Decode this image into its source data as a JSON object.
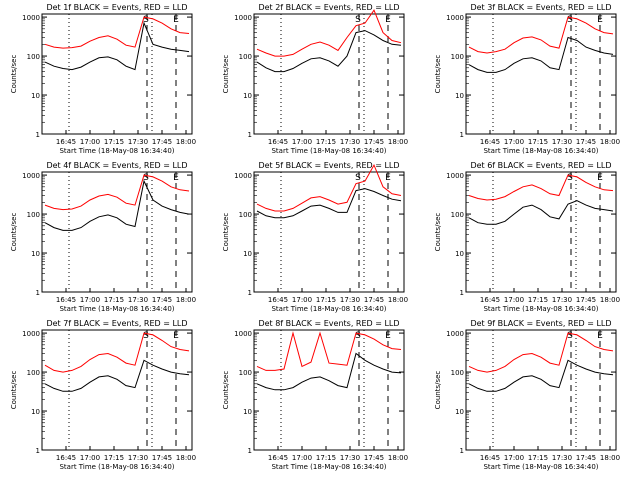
{
  "figure": {
    "xaxis_label": "Start Time (18-May-08 16:34:40)",
    "yaxis_label": "Counts/sec"
  },
  "colors": {
    "events": "#000000",
    "lld": "#ff0000"
  },
  "chart_data": [
    {
      "type": "line",
      "title": "Det 1f BLACK = Events, RED = LLD",
      "xticks": [
        "16:45",
        "17:00",
        "17:15",
        "17:30",
        "17:45",
        "18:00"
      ],
      "yticks": [
        "1",
        "10",
        "100",
        "1000"
      ],
      "xlim": [
        "16:34",
        "18:15"
      ],
      "ylim": [
        1,
        1200
      ],
      "yscale": "log",
      "markers": [
        "S",
        "E"
      ],
      "series": [
        {
          "name": "Events",
          "color": "#000000",
          "values": [
            70,
            55,
            48,
            45,
            52,
            70,
            90,
            95,
            80,
            55,
            45,
            700,
            200,
            170,
            150,
            140,
            130
          ]
        },
        {
          "name": "LLD",
          "color": "#ff0000",
          "values": [
            200,
            170,
            160,
            165,
            180,
            240,
            300,
            330,
            270,
            190,
            170,
            1000,
            900,
            700,
            500,
            400,
            380
          ]
        }
      ]
    },
    {
      "type": "line",
      "title": "Det 2f BLACK = Events, RED = LLD",
      "xticks": [
        "16:45",
        "17:00",
        "17:15",
        "17:30",
        "17:45",
        "18:00"
      ],
      "yticks": [
        "1",
        "10",
        "100",
        "1000"
      ],
      "xlim": [
        "16:34",
        "18:15"
      ],
      "ylim": [
        1,
        1200
      ],
      "yscale": "log",
      "markers": [
        "S",
        "E"
      ],
      "series": [
        {
          "name": "Events",
          "color": "#000000",
          "values": [
            70,
            50,
            40,
            40,
            48,
            65,
            85,
            90,
            75,
            55,
            100,
            400,
            450,
            350,
            250,
            200,
            190
          ]
        },
        {
          "name": "LLD",
          "color": "#ff0000",
          "values": [
            150,
            120,
            100,
            100,
            110,
            150,
            200,
            230,
            190,
            140,
            300,
            600,
            700,
            1500,
            400,
            250,
            220
          ]
        }
      ]
    },
    {
      "type": "line",
      "title": "Det 3f BLACK = Events, RED = LLD",
      "xticks": [
        "16:45",
        "17:00",
        "17:15",
        "17:30",
        "17:45",
        "18:00"
      ],
      "yticks": [
        "1",
        "10",
        "100",
        "1000"
      ],
      "xlim": [
        "16:34",
        "18:15"
      ],
      "ylim": [
        1,
        1200
      ],
      "yscale": "log",
      "markers": [
        "S",
        "E"
      ],
      "series": [
        {
          "name": "Events",
          "color": "#000000",
          "values": [
            60,
            45,
            38,
            38,
            45,
            65,
            85,
            90,
            75,
            50,
            45,
            300,
            250,
            170,
            140,
            120,
            110
          ]
        },
        {
          "name": "LLD",
          "color": "#ff0000",
          "values": [
            170,
            130,
            120,
            130,
            150,
            220,
            290,
            310,
            260,
            180,
            160,
            1000,
            900,
            700,
            500,
            400,
            370
          ]
        }
      ]
    },
    {
      "type": "line",
      "title": "Det 4f BLACK = Events, RED = LLD",
      "xticks": [
        "16:45",
        "17:00",
        "17:15",
        "17:30",
        "17:45",
        "18:00"
      ],
      "yticks": [
        "1",
        "10",
        "100",
        "1000"
      ],
      "xlim": [
        "16:34",
        "18:15"
      ],
      "ylim": [
        1,
        1200
      ],
      "yscale": "log",
      "markers": [
        "S",
        "E"
      ],
      "series": [
        {
          "name": "Events",
          "color": "#000000",
          "values": [
            60,
            45,
            38,
            38,
            45,
            65,
            85,
            95,
            80,
            55,
            48,
            700,
            230,
            160,
            130,
            110,
            100
          ]
        },
        {
          "name": "LLD",
          "color": "#ff0000",
          "values": [
            170,
            140,
            130,
            135,
            160,
            230,
            290,
            320,
            270,
            190,
            170,
            1000,
            900,
            700,
            500,
            420,
            390
          ]
        }
      ]
    },
    {
      "type": "line",
      "title": "Det 5f BLACK = Events, RED = LLD",
      "xticks": [
        "16:45",
        "17:00",
        "17:15",
        "17:30",
        "17:45",
        "18:00"
      ],
      "yticks": [
        "1",
        "10",
        "100",
        "1000"
      ],
      "xlim": [
        "16:34",
        "18:15"
      ],
      "ylim": [
        1,
        1200
      ],
      "yscale": "log",
      "markers": [
        "S",
        "E"
      ],
      "series": [
        {
          "name": "Events",
          "color": "#000000",
          "values": [
            120,
            90,
            80,
            80,
            90,
            120,
            160,
            170,
            140,
            110,
            110,
            400,
            450,
            380,
            300,
            240,
            220
          ]
        },
        {
          "name": "LLD",
          "color": "#ff0000",
          "values": [
            180,
            140,
            120,
            120,
            140,
            190,
            260,
            280,
            230,
            180,
            200,
            600,
            700,
            1800,
            500,
            330,
            300
          ]
        }
      ]
    },
    {
      "type": "line",
      "title": "Det 6f BLACK = Events, RED = LLD",
      "xticks": [
        "16:45",
        "17:00",
        "17:15",
        "17:30",
        "17:45",
        "18:00"
      ],
      "yticks": [
        "1",
        "10",
        "100",
        "1000"
      ],
      "xlim": [
        "16:34",
        "18:15"
      ],
      "ylim": [
        1,
        1200
      ],
      "yscale": "log",
      "markers": [
        "S",
        "E"
      ],
      "series": [
        {
          "name": "Events",
          "color": "#000000",
          "values": [
            80,
            60,
            55,
            55,
            65,
            100,
            150,
            170,
            130,
            85,
            75,
            180,
            220,
            170,
            140,
            130,
            120
          ]
        },
        {
          "name": "LLD",
          "color": "#ff0000",
          "values": [
            300,
            250,
            230,
            240,
            280,
            380,
            500,
            560,
            450,
            330,
            300,
            1000,
            900,
            650,
            500,
            420,
            400
          ]
        }
      ]
    },
    {
      "type": "line",
      "title": "Det 7f BLACK = Events, RED = LLD",
      "xticks": [
        "16:45",
        "17:00",
        "17:15",
        "17:30",
        "17:45",
        "18:00"
      ],
      "yticks": [
        "1",
        "10",
        "100",
        "1000"
      ],
      "xlim": [
        "16:34",
        "18:15"
      ],
      "ylim": [
        1,
        1200
      ],
      "yscale": "log",
      "markers": [
        "S",
        "E"
      ],
      "series": [
        {
          "name": "Events",
          "color": "#000000",
          "values": [
            50,
            38,
            32,
            32,
            38,
            55,
            75,
            80,
            65,
            45,
            40,
            200,
            150,
            120,
            100,
            90,
            85
          ]
        },
        {
          "name": "LLD",
          "color": "#ff0000",
          "values": [
            150,
            110,
            100,
            110,
            140,
            210,
            280,
            300,
            240,
            170,
            150,
            1000,
            900,
            650,
            450,
            380,
            350
          ]
        }
      ]
    },
    {
      "type": "line",
      "title": "Det 8f BLACK = Events, RED = LLD",
      "xticks": [
        "16:45",
        "17:00",
        "17:15",
        "17:30",
        "17:45",
        "18:00"
      ],
      "yticks": [
        "1",
        "10",
        "100",
        "1000"
      ],
      "xlim": [
        "16:34",
        "18:15"
      ],
      "ylim": [
        1,
        1200
      ],
      "yscale": "log",
      "markers": [
        "S",
        "E"
      ],
      "series": [
        {
          "name": "Events",
          "color": "#000000",
          "values": [
            50,
            40,
            35,
            35,
            40,
            55,
            70,
            75,
            60,
            45,
            40,
            300,
            200,
            150,
            120,
            100,
            95
          ]
        },
        {
          "name": "LLD",
          "color": "#ff0000",
          "values": [
            140,
            110,
            110,
            120,
            1000,
            140,
            180,
            1000,
            170,
            160,
            150,
            1000,
            900,
            700,
            500,
            400,
            380
          ]
        }
      ]
    },
    {
      "type": "line",
      "title": "Det 9f BLACK = Events, RED = LLD",
      "xticks": [
        "16:45",
        "17:00",
        "17:15",
        "17:30",
        "17:45",
        "18:00"
      ],
      "yticks": [
        "1",
        "10",
        "100",
        "1000"
      ],
      "xlim": [
        "16:34",
        "18:15"
      ],
      "ylim": [
        1,
        1200
      ],
      "yscale": "log",
      "markers": [
        "S",
        "E"
      ],
      "series": [
        {
          "name": "Events",
          "color": "#000000",
          "values": [
            50,
            38,
            32,
            32,
            38,
            55,
            75,
            80,
            65,
            45,
            40,
            200,
            150,
            120,
            100,
            90,
            85
          ]
        },
        {
          "name": "LLD",
          "color": "#ff0000",
          "values": [
            140,
            110,
            100,
            110,
            140,
            210,
            280,
            300,
            240,
            170,
            150,
            1000,
            900,
            650,
            450,
            380,
            350
          ]
        }
      ]
    }
  ]
}
